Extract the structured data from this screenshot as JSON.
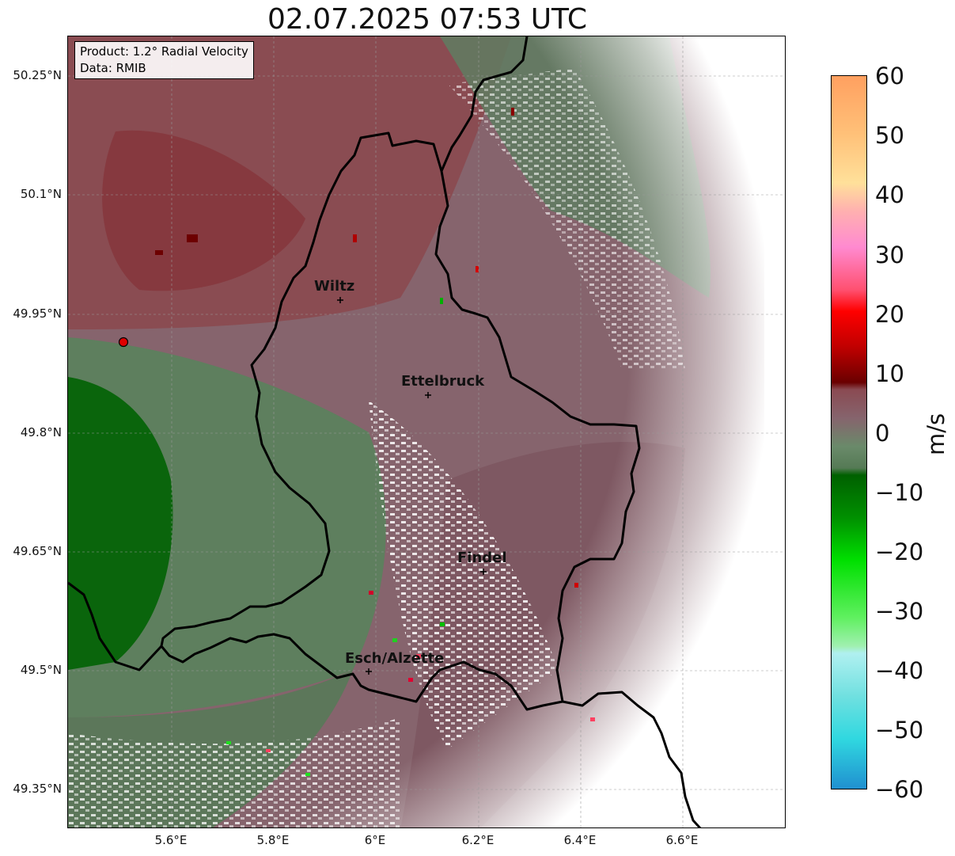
{
  "title": "02.07.2025 07:53 UTC",
  "info_box": {
    "product": "Product: 1.2° Radial Velocity",
    "data": "Data: RMIB"
  },
  "axes": {
    "y_ticks": [
      "50.25°N",
      "50.1°N",
      "49.95°N",
      "49.8°N",
      "49.65°N",
      "49.5°N",
      "49.35°N"
    ],
    "x_ticks": [
      "5.6°E",
      "5.8°E",
      "6°E",
      "6.2°E",
      "6.4°E",
      "6.6°E"
    ]
  },
  "cities": [
    "Wiltz",
    "Ettelbruck",
    "Findel",
    "Esch/Alzette"
  ],
  "colorbar": {
    "unit": "m/s",
    "ticks": [
      "60",
      "50",
      "40",
      "30",
      "20",
      "10",
      "0",
      "−10",
      "−20",
      "−30",
      "−40",
      "−50",
      "−60"
    ],
    "range": [
      -60,
      60
    ]
  },
  "colors": {
    "north_red": "#8a4a4e",
    "mauve": "#86606a",
    "green_far": "#5a7f5c",
    "dark_green": "#0a6b0a",
    "border": "#000000"
  }
}
